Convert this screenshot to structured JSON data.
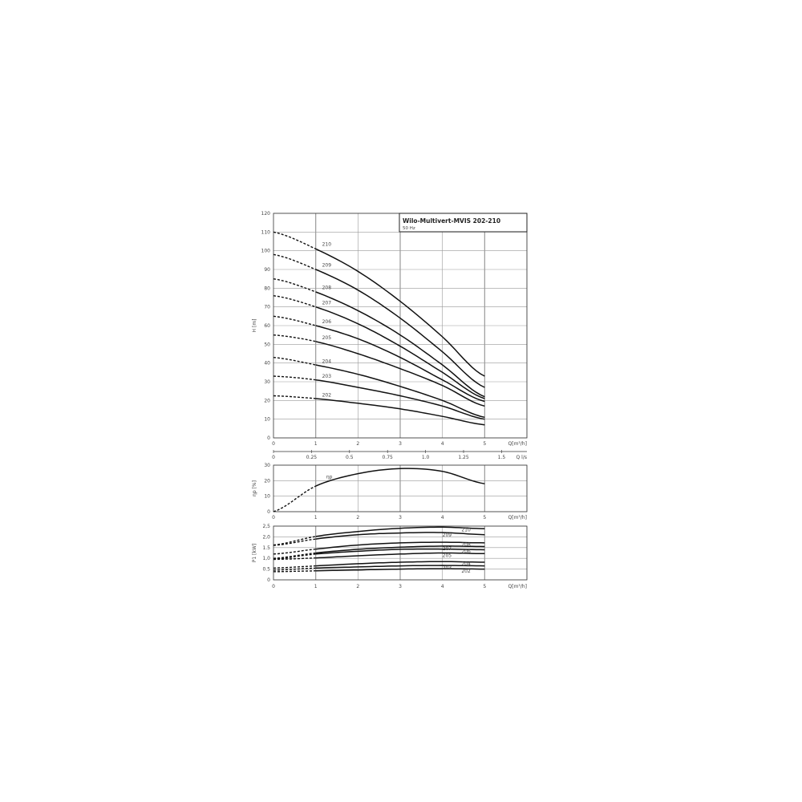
{
  "chart_data": [
    {
      "type": "line",
      "title": "Wilo-Multivert-MVIS 202-210",
      "subtitle": "50 Hz",
      "xlabel": "Q[m³/h]",
      "ylabel": "H [m]",
      "xlim": [
        0,
        6
      ],
      "ylim": [
        0,
        120
      ],
      "xticks": [
        "0",
        "1",
        "2",
        "3",
        "4",
        "5"
      ],
      "yticks": [
        "0",
        "10",
        "20",
        "30",
        "40",
        "50",
        "60",
        "70",
        "80",
        "90",
        "100",
        "110",
        "120"
      ],
      "secondary_xaxis": {
        "label": "Q l/s",
        "ticks": [
          "0",
          "0.25",
          "0.5",
          "0.75",
          "1.0",
          "1.25",
          "1.5"
        ]
      },
      "grid": true,
      "x": [
        0,
        1,
        2,
        3,
        4,
        5
      ],
      "dashed_range": [
        0,
        1
      ],
      "series": [
        {
          "name": "210",
          "values": [
            110,
            101,
            89,
            73,
            54,
            33
          ]
        },
        {
          "name": "209",
          "values": [
            98,
            90,
            79,
            64,
            46,
            27
          ]
        },
        {
          "name": "208",
          "values": [
            85,
            78,
            68,
            55,
            39,
            22
          ]
        },
        {
          "name": "207",
          "values": [
            76,
            70,
            61,
            49,
            35,
            21
          ]
        },
        {
          "name": "206",
          "values": [
            65,
            60,
            53,
            43,
            31,
            19.5
          ]
        },
        {
          "name": "205",
          "values": [
            55,
            51.5,
            45,
            37,
            28,
            17
          ]
        },
        {
          "name": "204",
          "values": [
            43,
            39,
            34,
            27.5,
            20,
            11
          ]
        },
        {
          "name": "203",
          "values": [
            33,
            31,
            27,
            22.5,
            17,
            10
          ]
        },
        {
          "name": "202",
          "values": [
            22.5,
            21,
            18.5,
            15.5,
            11.5,
            7
          ]
        }
      ]
    },
    {
      "type": "line",
      "xlabel": "Q[m³/h]",
      "ylabel": "ηp [%]",
      "xlim": [
        0,
        6
      ],
      "ylim": [
        0,
        30
      ],
      "xticks": [
        "0",
        "1",
        "2",
        "3",
        "4",
        "5"
      ],
      "yticks": [
        "0",
        "10",
        "20",
        "30"
      ],
      "grid": true,
      "x": [
        0,
        1,
        2,
        3,
        4,
        5
      ],
      "dashed_range": [
        0,
        1
      ],
      "series": [
        {
          "name": "ηp",
          "values": [
            0,
            16.5,
            24.5,
            27.8,
            26,
            18
          ]
        }
      ]
    },
    {
      "type": "line",
      "xlabel": "Q[m³/h]",
      "ylabel": "P1 [kW]",
      "xlim": [
        0,
        6
      ],
      "ylim": [
        0,
        2.5
      ],
      "xticks": [
        "0",
        "1",
        "2",
        "3",
        "4",
        "5"
      ],
      "yticks": [
        "0",
        "0.5",
        "1,0",
        "1.5",
        "2,0",
        "2,5"
      ],
      "grid": true,
      "x": [
        0,
        1,
        2,
        3,
        4,
        5
      ],
      "dashed_range": [
        0,
        1
      ],
      "series": [
        {
          "name": "210",
          "values": [
            1.62,
            2.02,
            2.25,
            2.4,
            2.45,
            2.38
          ]
        },
        {
          "name": "209",
          "values": [
            1.6,
            1.9,
            2.1,
            2.18,
            2.2,
            2.1
          ]
        },
        {
          "name": "208",
          "values": [
            1.2,
            1.43,
            1.62,
            1.72,
            1.75,
            1.72
          ]
        },
        {
          "name": "207",
          "values": [
            1.0,
            1.25,
            1.42,
            1.52,
            1.57,
            1.55
          ]
        },
        {
          "name": "206",
          "values": [
            0.97,
            1.2,
            1.33,
            1.42,
            1.43,
            1.4
          ]
        },
        {
          "name": "205",
          "values": [
            0.95,
            1.02,
            1.12,
            1.2,
            1.25,
            1.22
          ]
        },
        {
          "name": "204",
          "values": [
            0.55,
            0.65,
            0.75,
            0.82,
            0.85,
            0.82
          ]
        },
        {
          "name": "203",
          "values": [
            0.45,
            0.55,
            0.6,
            0.65,
            0.67,
            0.65
          ]
        },
        {
          "name": "202",
          "values": [
            0.38,
            0.42,
            0.46,
            0.5,
            0.52,
            0.5
          ]
        }
      ]
    }
  ]
}
